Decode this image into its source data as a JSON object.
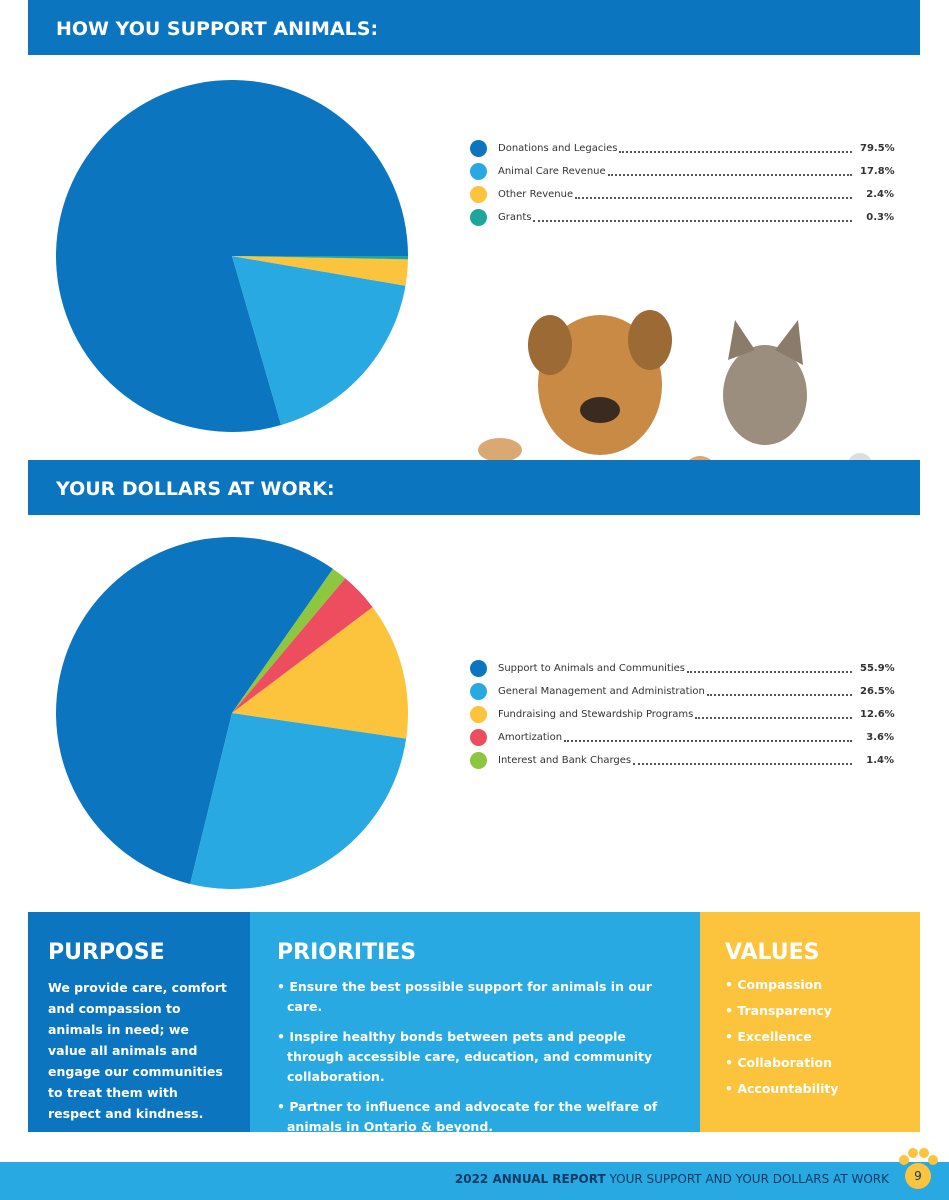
{
  "chart_data": [
    {
      "type": "pie",
      "title": "HOW YOU SUPPORT ANIMALS:",
      "categories": [
        "Donations and Legacies",
        "Animal Care Revenue",
        "Other Revenue",
        "Grants"
      ],
      "values": [
        79.5,
        17.8,
        2.4,
        0.3
      ],
      "value_labels": [
        "79.5%",
        "17.8%",
        "2.4%",
        "0.3%"
      ],
      "colors": [
        "#0b75bf",
        "#29a9e1",
        "#fcc33d",
        "#1ea69b"
      ]
    },
    {
      "type": "pie",
      "title": "YOUR DOLLARS AT WORK:",
      "categories": [
        "Support to Animals and Communities",
        "General Management and Administration",
        "Fundraising and Stewardship Programs",
        "Amortization",
        "Interest and Bank Charges"
      ],
      "values": [
        55.9,
        26.5,
        12.6,
        3.6,
        1.4
      ],
      "value_labels": [
        "55.9%",
        "26.5%",
        "12.6%",
        "3.6%",
        "1.4%"
      ],
      "colors": [
        "#0b75bf",
        "#29a9e1",
        "#fcc33d",
        "#ee4d5f",
        "#8dc63f"
      ]
    }
  ],
  "purpose": {
    "title": "PURPOSE",
    "text": "We provide care, comfort and compassion to animals in need; we value all animals and engage our communities to treat them with respect and kindness."
  },
  "priorities": {
    "title": "PRIORITIES",
    "items": [
      "Ensure the best possible support for animals in our care.",
      "Inspire healthy bonds between pets and people through accessible care, education, and community collaboration.",
      "Partner to influence and advocate for the welfare of animals in Ontario & beyond."
    ]
  },
  "values": {
    "title": "VALUES",
    "items": [
      "Compassion",
      "Transparency",
      "Excellence",
      "Collaboration",
      "Accountability"
    ]
  },
  "footer": {
    "report": "2022 ANNUAL REPORT",
    "subtitle": "YOUR SUPPORT AND YOUR DOLLARS AT WORK",
    "page": "9"
  }
}
